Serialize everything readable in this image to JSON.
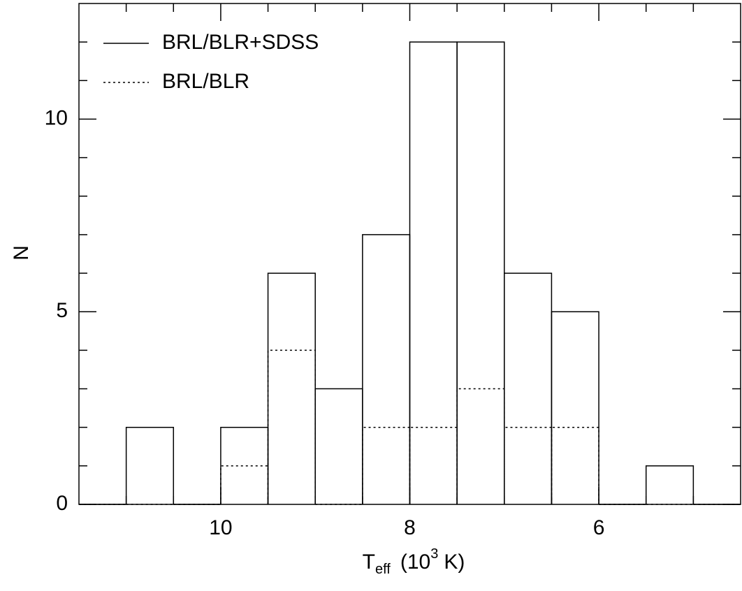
{
  "chart_data": {
    "type": "histogram",
    "x_label": {
      "base": "T",
      "sub": "eff",
      "rest": "(10",
      "sup": "3",
      "end": "K)"
    },
    "y_label": "N",
    "bins": [
      11.5,
      11,
      10.5,
      10,
      9.5,
      9,
      8.5,
      8,
      7.5,
      7,
      6.5,
      6,
      5.5,
      5,
      4.5
    ],
    "series": [
      {
        "name": "BRL/BLR+SDSS",
        "color": "#000000",
        "style": "solid",
        "values": [
          0,
          2,
          0,
          2,
          6,
          3,
          7,
          12,
          12,
          6,
          5,
          0,
          1,
          0
        ]
      },
      {
        "name": "BRL/BLR",
        "color": "#000000",
        "style": "dotted",
        "values": [
          0,
          0,
          0,
          1,
          4,
          0,
          2,
          2,
          3,
          2,
          2,
          0,
          0,
          0
        ]
      }
    ],
    "xlim": [
      11.5,
      4.5
    ],
    "ylim": [
      0,
      13
    ],
    "xticks": [
      10,
      8,
      6
    ],
    "yticks": [
      0,
      5,
      10
    ],
    "minor_xticks": [
      11,
      10.5,
      9.5,
      9,
      8.5,
      7.5,
      7,
      6.5,
      5.5,
      5
    ],
    "minor_yticks": [
      1,
      2,
      3,
      4,
      6,
      7,
      8,
      9,
      11,
      12
    ],
    "legend": "upper left"
  }
}
